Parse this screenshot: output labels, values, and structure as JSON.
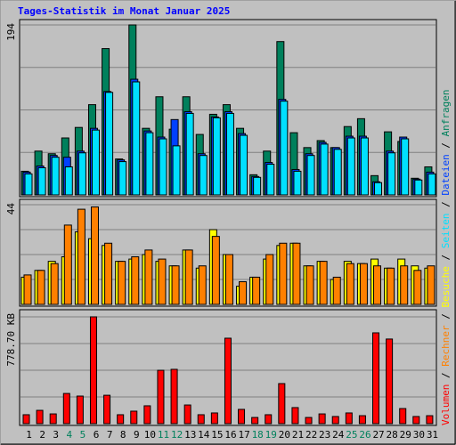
{
  "chart_data": [
    {
      "type": "bar",
      "title": "Tages-Statistik im Monat Januar 2025",
      "title_color": "#0000ff",
      "ylim": [
        0,
        194
      ],
      "yticks": [
        194
      ],
      "series": [
        {
          "name": "Anfragen",
          "color": "#00805c",
          "values": [
            27,
            50,
            47,
            65,
            77,
            103,
            167,
            41,
            194,
            76,
            112,
            75,
            112,
            69,
            92,
            103,
            76,
            23,
            50,
            175,
            71,
            54,
            62,
            54,
            78,
            87,
            22,
            72,
            61,
            19,
            32
          ]
        },
        {
          "name": "Dateien",
          "color": "#0040ff",
          "values": [
            26,
            33,
            45,
            43,
            50,
            76,
            118,
            40,
            132,
            73,
            66,
            86,
            95,
            47,
            89,
            95,
            70,
            21,
            37,
            109,
            29,
            47,
            60,
            54,
            67,
            67,
            15,
            50,
            66,
            18,
            26
          ]
        },
        {
          "name": "Seiten",
          "color": "#00e0ff",
          "values": [
            24,
            31,
            43,
            32,
            48,
            74,
            117,
            38,
            129,
            71,
            64,
            56,
            93,
            45,
            88,
            93,
            68,
            20,
            35,
            107,
            27,
            45,
            58,
            52,
            65,
            65,
            14,
            48,
            64,
            17,
            24
          ]
        }
      ]
    },
    {
      "type": "bar",
      "ylim": [
        0,
        44
      ],
      "yticks": [
        44
      ],
      "series": [
        {
          "name": "Besuche",
          "color": "#ffff00",
          "values": [
            12,
            15,
            19,
            21,
            32,
            29,
            26,
            19,
            20,
            22,
            19,
            17,
            24,
            16,
            33,
            22,
            8,
            12,
            20,
            26,
            27,
            17,
            19,
            11,
            19,
            18,
            20,
            16,
            20,
            17,
            16
          ]
        },
        {
          "name": "Rechner",
          "color": "#ff8000",
          "values": [
            13,
            15,
            18,
            35,
            42,
            43,
            27,
            19,
            21,
            24,
            20,
            17,
            24,
            17,
            30,
            22,
            10,
            12,
            22,
            27,
            27,
            17,
            19,
            12,
            18,
            18,
            17,
            16,
            17,
            15,
            17
          ]
        }
      ]
    },
    {
      "type": "bar",
      "ylim": [
        0,
        778.7
      ],
      "yticks": [
        {
          "value": 778.7,
          "label": "778.70 KB"
        }
      ],
      "categories": [
        "1",
        "2",
        "3",
        "4",
        "5",
        "6",
        "7",
        "8",
        "9",
        "10",
        "11",
        "12",
        "13",
        "14",
        "15",
        "16",
        "17",
        "18",
        "19",
        "20",
        "21",
        "22",
        "23",
        "24",
        "25",
        "26",
        "27",
        "28",
        "29",
        "30",
        "31"
      ],
      "category_colors": [
        "#000000",
        "#000000",
        "#000000",
        "#00805c",
        "#00805c",
        "#000000",
        "#000000",
        "#000000",
        "#000000",
        "#000000",
        "#00805c",
        "#00805c",
        "#000000",
        "#000000",
        "#000000",
        "#000000",
        "#000000",
        "#00805c",
        "#00805c",
        "#000000",
        "#000000",
        "#000000",
        "#000000",
        "#000000",
        "#00805c",
        "#00805c",
        "#000000",
        "#000000",
        "#000000",
        "#000000",
        "#000000"
      ],
      "series": [
        {
          "name": "Volumen",
          "color": "#ff0000",
          "values": [
            65,
            97,
            71,
            220,
            201,
            778.7,
            207,
            65,
            91,
            130,
            389,
            396,
            136,
            65,
            78,
            623,
            104,
            45,
            65,
            292,
            117,
            45,
            71,
            52,
            78,
            58,
            662,
            617,
            110,
            52,
            58
          ]
        }
      ]
    }
  ]
}
